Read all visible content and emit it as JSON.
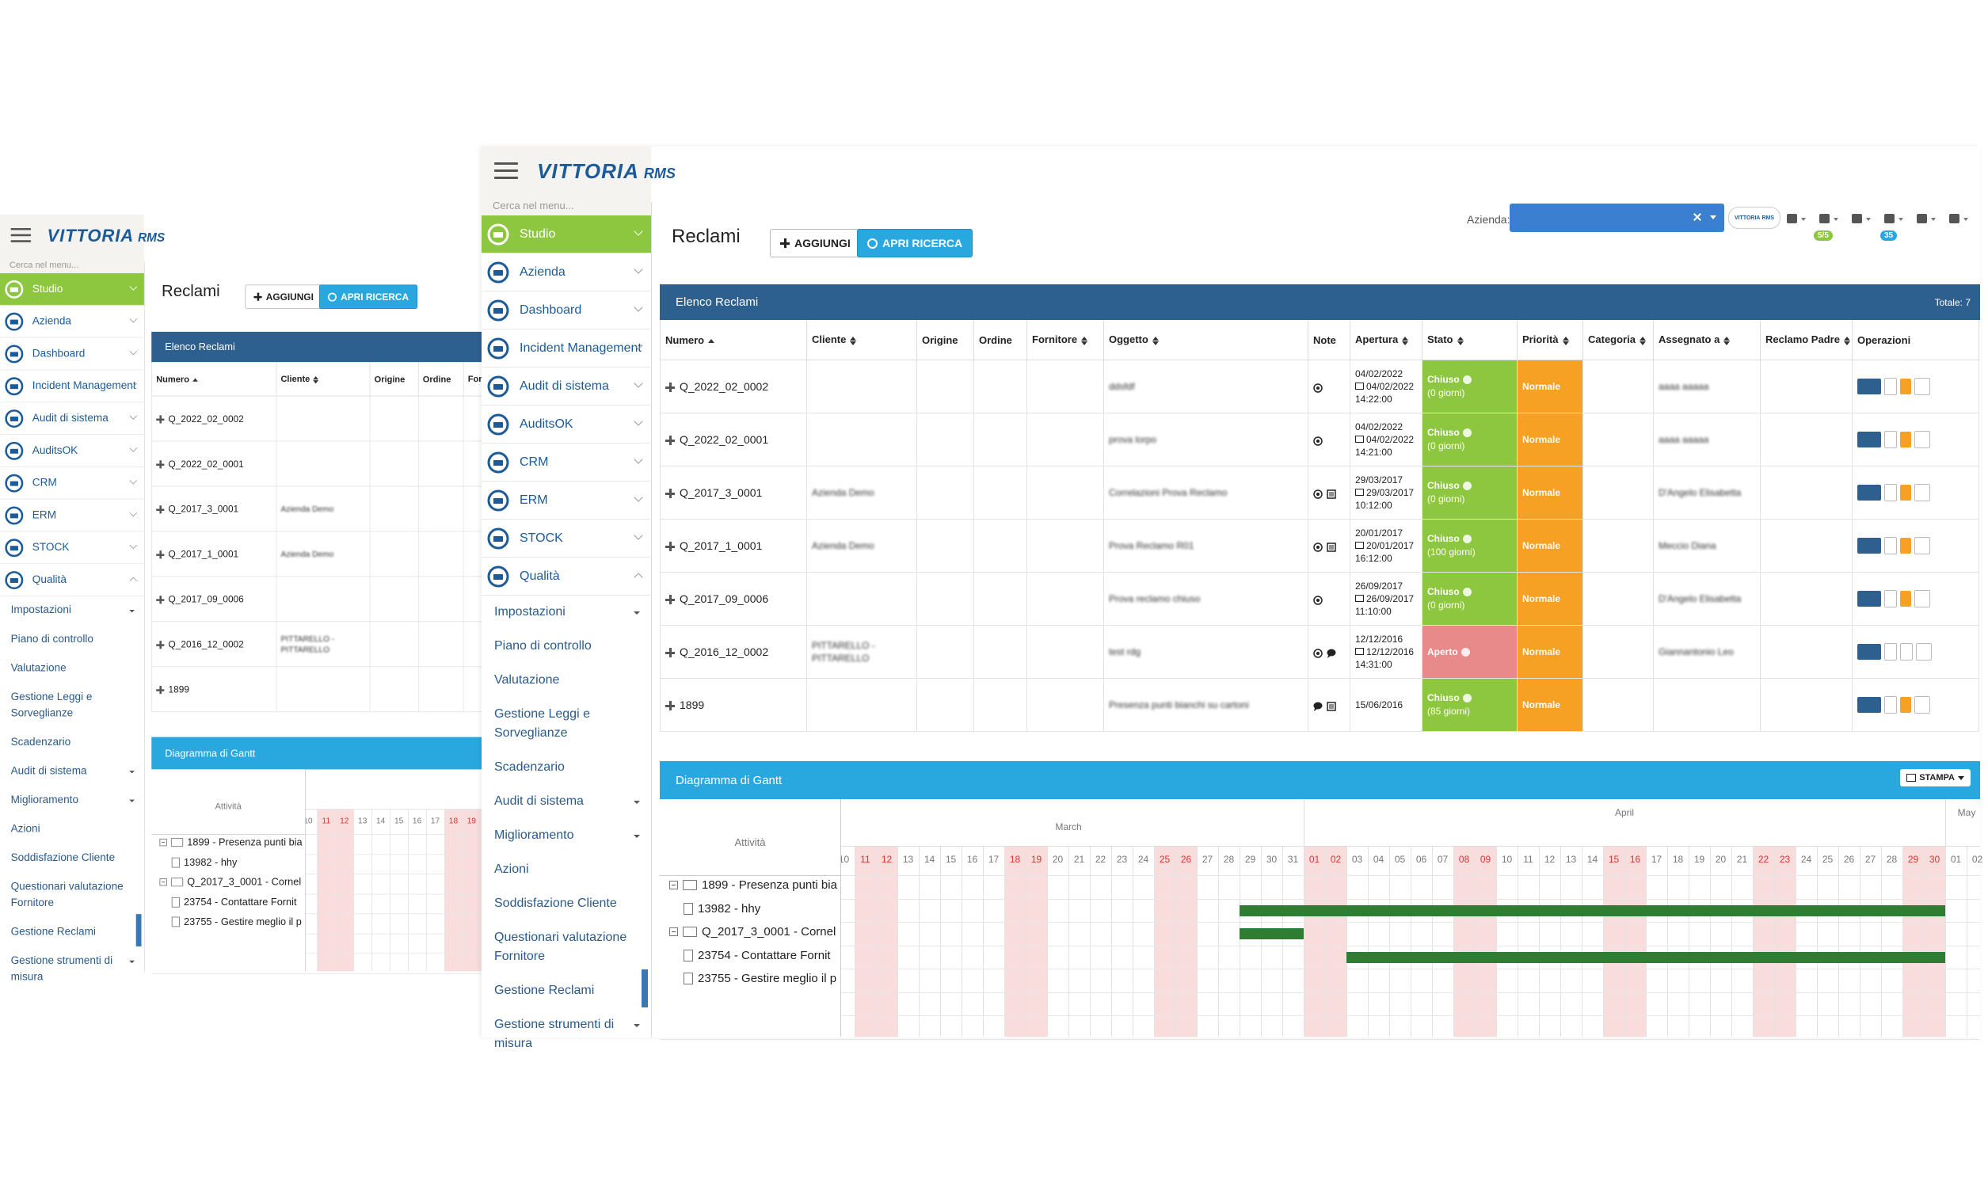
{
  "app": {
    "logo": "VITTORIA",
    "logo_suffix": "RMS",
    "search_placeholder": "Cerca nel menu..."
  },
  "sidebar": {
    "items": [
      {
        "label": "Studio",
        "active": true
      },
      {
        "label": "Azienda"
      },
      {
        "label": "Dashboard"
      },
      {
        "label": "Incident Management"
      },
      {
        "label": "Audit di sistema"
      },
      {
        "label": "AuditsOK"
      },
      {
        "label": "CRM"
      },
      {
        "label": "ERM"
      },
      {
        "label": "STOCK"
      },
      {
        "label": "Qualità",
        "open": true
      }
    ],
    "submenu": [
      {
        "label": "Impostazioni",
        "caret": true
      },
      {
        "label": "Piano di controllo"
      },
      {
        "label": "Valutazione"
      },
      {
        "label": "Gestione Leggi e Sorveglianze"
      },
      {
        "label": "Scadenzario"
      },
      {
        "label": "Audit di sistema",
        "caret": true
      },
      {
        "label": "Miglioramento",
        "caret": true
      },
      {
        "label": "Azioni"
      },
      {
        "label": "Soddisfazione Cliente"
      },
      {
        "label": "Questionari valutazione Fornitore"
      },
      {
        "label": "Gestione Reclami",
        "active": true
      },
      {
        "label": "Gestione strumenti di misura",
        "caret": true
      }
    ]
  },
  "header": {
    "title": "Reclami",
    "add_button": "AGGIUNGI",
    "search_button": "APRI RICERCA",
    "company_label": "Azienda:",
    "badges": [
      "5/5",
      "35"
    ]
  },
  "table": {
    "title": "Elenco Reclami",
    "total": "Totale: 7",
    "columns": [
      {
        "label": "Numero",
        "sort": "asc"
      },
      {
        "label": "Cliente",
        "sort": "both"
      },
      {
        "label": "Origine"
      },
      {
        "label": "Ordine"
      },
      {
        "label": "Fornitore",
        "sort": "both"
      },
      {
        "label": "Oggetto",
        "sort": "both"
      },
      {
        "label": "Note"
      },
      {
        "label": "Apertura",
        "sort": "both"
      },
      {
        "label": "Stato",
        "sort": "both"
      },
      {
        "label": "Priorità",
        "sort": "both"
      },
      {
        "label": "Categoria",
        "sort": "both"
      },
      {
        "label": "Assegnato a",
        "sort": "both"
      },
      {
        "label": "Reclamo Padre",
        "sort": "both"
      },
      {
        "label": "Operazioni"
      }
    ],
    "rows": [
      {
        "number": "Q_2022_02_0002",
        "subject": "ddsfdf",
        "note_icons": [
          "target"
        ],
        "opened": "04/02/2022",
        "updated": "04/02/2022",
        "time": "14:22:00",
        "status": "Chiuso",
        "status_detail": "(0 giorni)",
        "priority": "Normale",
        "assignee": "aaaa aaaaa"
      },
      {
        "number": "Q_2022_02_0001",
        "subject": "prova lorpo",
        "note_icons": [
          "target"
        ],
        "opened": "04/02/2022",
        "updated": "04/02/2022",
        "time": "14:21:00",
        "status": "Chiuso",
        "status_detail": "(0 giorni)",
        "priority": "Normale",
        "assignee": "aaaa aaaaa"
      },
      {
        "number": "Q_2017_3_0001",
        "client": "Azienda Demo",
        "subject": "Correlazioni Prova Reclamo",
        "note_icons": [
          "target",
          "list"
        ],
        "opened": "29/03/2017",
        "updated": "29/03/2017",
        "time": "10:12:00",
        "status": "Chiuso",
        "status_detail": "(0 giorni)",
        "priority": "Normale",
        "assignee": "D'Angelo Elisabetta"
      },
      {
        "number": "Q_2017_1_0001",
        "client": "Azienda Demo",
        "subject": "Prova Reclamo R01",
        "note_icons": [
          "target",
          "list"
        ],
        "opened": "20/01/2017",
        "updated": "20/01/2017",
        "time": "16:12:00",
        "status": "Chiuso",
        "status_detail": "(100 giorni)",
        "priority": "Normale",
        "assignee": "Meccio Diana"
      },
      {
        "number": "Q_2017_09_0006",
        "subject": "Prova reclamo chiuso",
        "note_icons": [
          "target"
        ],
        "opened": "26/09/2017",
        "updated": "26/09/2017",
        "time": "11:10:00",
        "status": "Chiuso",
        "status_detail": "(0 giorni)",
        "priority": "Normale",
        "assignee": "D'Angelo Elisabetta"
      },
      {
        "number": "Q_2016_12_0002",
        "client": "PITTARELLO - PITTARELLO",
        "subject": "test rdg",
        "note_icons": [
          "target",
          "bubble"
        ],
        "opened": "12/12/2016",
        "updated": "12/12/2016",
        "time": "14:31:00",
        "status": "Aperto",
        "priority": "Normale",
        "assignee": "Giannantonio Leo"
      },
      {
        "number": "1899",
        "subject": "Presenza punti bianchi su cartoni",
        "note_icons": [
          "bubble",
          "list"
        ],
        "opened": "15/06/2016",
        "status": "Chiuso",
        "status_detail": "(85 giorni)",
        "priority": "Normale"
      }
    ]
  },
  "gantt": {
    "title": "Diagramma di Gantt",
    "print_button": "STAMPA",
    "activity_header": "Attività",
    "months": [
      {
        "name": "March",
        "days": [
          "10",
          "11",
          "12",
          "13",
          "14",
          "15",
          "16",
          "17",
          "18",
          "19",
          "20",
          "21",
          "22",
          "23",
          "24",
          "25",
          "26",
          "27",
          "28",
          "29",
          "30",
          "31"
        ],
        "weekend": [
          "11",
          "12",
          "18",
          "19",
          "25",
          "26"
        ]
      },
      {
        "name": "April",
        "days": [
          "01",
          "02",
          "03",
          "04",
          "05",
          "06",
          "07",
          "08",
          "09",
          "10",
          "11",
          "12",
          "13",
          "14",
          "15",
          "16",
          "17",
          "18",
          "19",
          "20",
          "21",
          "22",
          "23",
          "24",
          "25",
          "26",
          "27",
          "28",
          "29",
          "30"
        ],
        "weekend": [
          "01",
          "02",
          "08",
          "09",
          "15",
          "16",
          "22",
          "23",
          "29",
          "30"
        ]
      },
      {
        "name": "May",
        "days": [
          "01",
          "02"
        ],
        "weekend": []
      }
    ],
    "tasks": [
      {
        "label": "1899 - Presenza punti bia",
        "level": 0
      },
      {
        "label": "13982 - hhy",
        "level": 1,
        "bar": {
          "from": [
            "March",
            "29"
          ],
          "to": [
            "April",
            "30"
          ]
        }
      },
      {
        "label": "Q_2017_3_0001 - Cornel",
        "level": 0,
        "bar": {
          "from": [
            "March",
            "29"
          ],
          "to": [
            "March",
            "31"
          ]
        }
      },
      {
        "label": "23754 - Contattare Fornit",
        "level": 1,
        "bar": {
          "from": [
            "April",
            "03"
          ],
          "to": [
            "April",
            "30"
          ]
        }
      },
      {
        "label": "23755 - Gestire meglio il p",
        "level": 1
      }
    ]
  }
}
